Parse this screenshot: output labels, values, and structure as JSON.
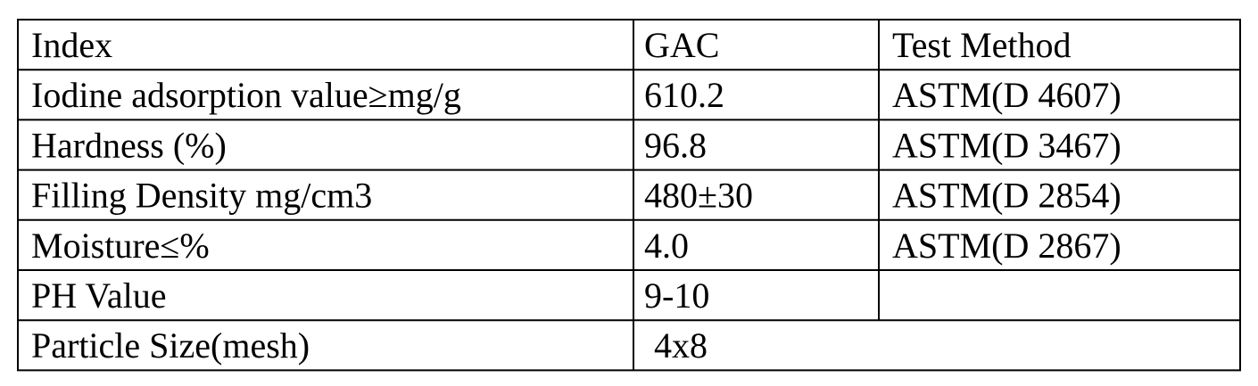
{
  "table": {
    "header": [
      "Index",
      "GAC",
      "Test Method"
    ],
    "rows": [
      [
        "Iodine adsorption value≥mg/g",
        "610.2",
        "ASTM(D 4607)"
      ],
      [
        "Hardness (%)",
        "96.8",
        "ASTM(D 3467)"
      ],
      [
        "Filling Density mg/cm3",
        "480±30",
        "ASTM(D 2854)"
      ],
      [
        "Moisture≤%",
        "4.0",
        "ASTM(D 2867)"
      ],
      [
        "PH Value",
        "9-10"
      ],
      [
        "Particle Size(mesh)",
        "4x8"
      ]
    ]
  }
}
